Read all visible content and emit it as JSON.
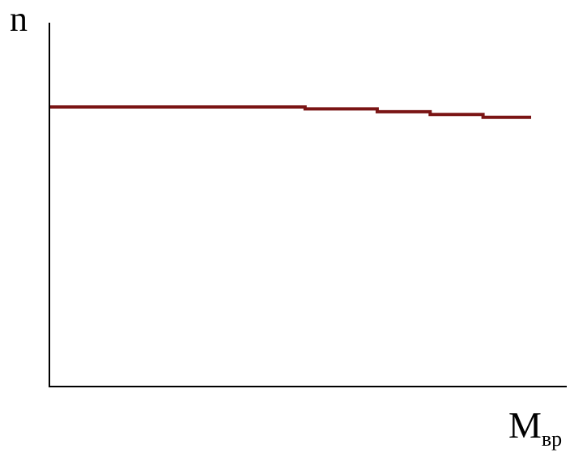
{
  "chart_data": {
    "type": "line",
    "ylabel": "n",
    "xlabel_main": "M",
    "xlabel_sub": "вр",
    "series": [
      {
        "x": [
          0,
          0.53,
          0.53,
          0.68,
          0.68,
          0.79,
          0.79,
          0.9,
          0.9,
          1.0
        ],
        "y": [
          1.0,
          1.0,
          0.993,
          0.993,
          0.983,
          0.983,
          0.973,
          0.973,
          0.963,
          0.963
        ]
      }
    ],
    "colors": {
      "series": "#7a1414",
      "axes": "#000000"
    }
  }
}
